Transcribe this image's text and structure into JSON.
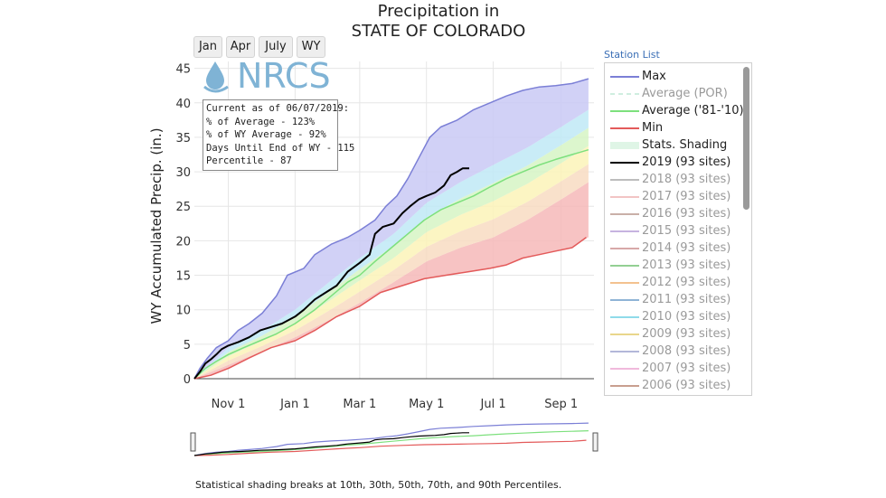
{
  "chart_data": {
    "type": "line",
    "title": "Precipitation in",
    "subtitle": "STATE OF COLORADO",
    "ylabel": "WY Accumulated Precip. (in.)",
    "xlabel": "",
    "ylim": [
      0,
      46
    ],
    "yticks": [
      0,
      5,
      10,
      15,
      20,
      25,
      30,
      35,
      40,
      45
    ],
    "x_unit": "days since Oct 1 of water year",
    "xlim": [
      0,
      365
    ],
    "x_ticks": [
      {
        "day": 31,
        "label": "Nov 1"
      },
      {
        "day": 92,
        "label": "Jan 1"
      },
      {
        "day": 151,
        "label": "Mar 1"
      },
      {
        "day": 212,
        "label": "May 1"
      },
      {
        "day": 273,
        "label": "Jul 1"
      },
      {
        "day": 335,
        "label": "Sep 1"
      }
    ],
    "grid": true,
    "legend_placement": "right",
    "series": [
      {
        "name": "Max",
        "color": "#7b7fd6",
        "points": [
          [
            0,
            0
          ],
          [
            5,
            1.5
          ],
          [
            12,
            3
          ],
          [
            20,
            4.5
          ],
          [
            31,
            5.5
          ],
          [
            40,
            7
          ],
          [
            50,
            8
          ],
          [
            62,
            9.5
          ],
          [
            75,
            12
          ],
          [
            85,
            15
          ],
          [
            100,
            16
          ],
          [
            110,
            18
          ],
          [
            125,
            19.5
          ],
          [
            140,
            20.5
          ],
          [
            151,
            21.5
          ],
          [
            165,
            23
          ],
          [
            175,
            25
          ],
          [
            185,
            26.5
          ],
          [
            195,
            29
          ],
          [
            205,
            32
          ],
          [
            215,
            35
          ],
          [
            225,
            36.5
          ],
          [
            240,
            37.5
          ],
          [
            255,
            39
          ],
          [
            270,
            40
          ],
          [
            285,
            41
          ],
          [
            300,
            41.8
          ],
          [
            315,
            42.3
          ],
          [
            330,
            42.5
          ],
          [
            345,
            42.8
          ],
          [
            360,
            43.5
          ]
        ]
      },
      {
        "name": "Average ('81-'10)",
        "color": "#7de07d",
        "points": [
          [
            0,
            0
          ],
          [
            10,
            1.5
          ],
          [
            20,
            2.5
          ],
          [
            31,
            3.5
          ],
          [
            45,
            4.5
          ],
          [
            60,
            5.5
          ],
          [
            75,
            6.5
          ],
          [
            92,
            8
          ],
          [
            110,
            10
          ],
          [
            125,
            12
          ],
          [
            140,
            14
          ],
          [
            151,
            15
          ],
          [
            165,
            17
          ],
          [
            180,
            19
          ],
          [
            195,
            21
          ],
          [
            210,
            23
          ],
          [
            225,
            24.5
          ],
          [
            240,
            25.5
          ],
          [
            255,
            26.5
          ],
          [
            270,
            27.8
          ],
          [
            285,
            29
          ],
          [
            300,
            30
          ],
          [
            315,
            31
          ],
          [
            330,
            31.8
          ],
          [
            345,
            32.5
          ],
          [
            360,
            33.2
          ]
        ]
      },
      {
        "name": "Min",
        "color": "#e35a5a",
        "points": [
          [
            0,
            0
          ],
          [
            15,
            0.5
          ],
          [
            31,
            1.5
          ],
          [
            50,
            3
          ],
          [
            70,
            4.5
          ],
          [
            92,
            5.5
          ],
          [
            110,
            7
          ],
          [
            130,
            9
          ],
          [
            151,
            10.5
          ],
          [
            170,
            12.5
          ],
          [
            190,
            13.5
          ],
          [
            210,
            14.5
          ],
          [
            230,
            15
          ],
          [
            250,
            15.5
          ],
          [
            270,
            16
          ],
          [
            285,
            16.5
          ],
          [
            300,
            17.5
          ],
          [
            315,
            18
          ],
          [
            330,
            18.5
          ],
          [
            345,
            19
          ],
          [
            358,
            20.5
          ]
        ]
      },
      {
        "name": "2019 (93 sites)",
        "color": "#000000",
        "points": [
          [
            0,
            0
          ],
          [
            5,
            1
          ],
          [
            10,
            2.2
          ],
          [
            15,
            2.8
          ],
          [
            20,
            3.5
          ],
          [
            25,
            4.3
          ],
          [
            31,
            4.8
          ],
          [
            40,
            5.3
          ],
          [
            50,
            6
          ],
          [
            60,
            7
          ],
          [
            70,
            7.5
          ],
          [
            80,
            8
          ],
          [
            92,
            9
          ],
          [
            100,
            10
          ],
          [
            110,
            11.5
          ],
          [
            120,
            12.5
          ],
          [
            130,
            13.5
          ],
          [
            140,
            15.5
          ],
          [
            151,
            16.8
          ],
          [
            160,
            18
          ],
          [
            165,
            21
          ],
          [
            172,
            22
          ],
          [
            182,
            22.5
          ],
          [
            190,
            24
          ],
          [
            197,
            25
          ],
          [
            205,
            26
          ],
          [
            212,
            26.5
          ],
          [
            220,
            27
          ],
          [
            228,
            28
          ],
          [
            234,
            29.5
          ],
          [
            240,
            30
          ],
          [
            245,
            30.5
          ],
          [
            251,
            30.5
          ]
        ]
      }
    ],
    "shading": {
      "name": "Stats. Shading",
      "percentiles": [
        "10th",
        "30th",
        "50th",
        "70th",
        "90th"
      ],
      "p10": [
        [
          0,
          0
        ],
        [
          31,
          2
        ],
        [
          62,
          4
        ],
        [
          92,
          6
        ],
        [
          123,
          8.5
        ],
        [
          151,
          11
        ],
        [
          182,
          14
        ],
        [
          212,
          17
        ],
        [
          243,
          19
        ],
        [
          273,
          20.5
        ],
        [
          304,
          23
        ],
        [
          335,
          26
        ],
        [
          360,
          28.5
        ]
      ],
      "p90": [
        [
          0,
          0
        ],
        [
          31,
          4.5
        ],
        [
          62,
          7
        ],
        [
          92,
          10
        ],
        [
          123,
          14
        ],
        [
          151,
          17.5
        ],
        [
          182,
          21
        ],
        [
          212,
          25.5
        ],
        [
          243,
          28.5
        ],
        [
          273,
          31
        ],
        [
          304,
          33.5
        ],
        [
          335,
          36.5
        ],
        [
          360,
          39
        ]
      ],
      "band_colors": [
        "#f6b9b9",
        "#f8dcc2",
        "#fbf3b8",
        "#d6f5c4",
        "#bfe9f6",
        "#c9c9f5"
      ]
    }
  },
  "range_buttons": [
    "Jan",
    "Apr",
    "July",
    "WY"
  ],
  "logo": {
    "text": "NRCS"
  },
  "info_box": {
    "line1": "Current as of 06/07/2019:",
    "line2": "% of Average - 123%",
    "line3": "% of WY Average - 92%",
    "line4": "Days Until End of WY - 115",
    "line5": "Percentile - 87"
  },
  "station_list_link": "Station List",
  "legend": {
    "items": [
      {
        "label": "Max",
        "color": "#7b7fd6",
        "kind": "line",
        "muted": false
      },
      {
        "label": "Average (POR)",
        "color": "#cfeee0",
        "kind": "dash",
        "muted": true
      },
      {
        "label": "Average ('81-'10)",
        "color": "#7de07d",
        "kind": "line",
        "muted": false
      },
      {
        "label": "Min",
        "color": "#e35a5a",
        "kind": "line",
        "muted": false
      },
      {
        "label": "Stats. Shading",
        "color": "#dff5e6",
        "kind": "box",
        "muted": false
      },
      {
        "label": "2019 (93 sites)",
        "color": "#000000",
        "kind": "line",
        "muted": false
      },
      {
        "label": "2018 (93 sites)",
        "color": "#bdbdbd",
        "kind": "line",
        "muted": true
      },
      {
        "label": "2017 (93 sites)",
        "color": "#f2c4c4",
        "kind": "line",
        "muted": true
      },
      {
        "label": "2016 (93 sites)",
        "color": "#c9b0a8",
        "kind": "line",
        "muted": true
      },
      {
        "label": "2015 (93 sites)",
        "color": "#c6b3e0",
        "kind": "line",
        "muted": true
      },
      {
        "label": "2014 (93 sites)",
        "color": "#d7a8a8",
        "kind": "line",
        "muted": true
      },
      {
        "label": "2013 (93 sites)",
        "color": "#93cf93",
        "kind": "line",
        "muted": true
      },
      {
        "label": "2012 (93 sites)",
        "color": "#f3c28f",
        "kind": "line",
        "muted": true
      },
      {
        "label": "2011 (93 sites)",
        "color": "#8fb4d6",
        "kind": "line",
        "muted": true
      },
      {
        "label": "2010 (93 sites)",
        "color": "#8fdbea",
        "kind": "line",
        "muted": true
      },
      {
        "label": "2009 (93 sites)",
        "color": "#e9d68c",
        "kind": "line",
        "muted": true
      },
      {
        "label": "2008 (93 sites)",
        "color": "#b3b7d9",
        "kind": "line",
        "muted": true
      },
      {
        "label": "2007 (93 sites)",
        "color": "#f0b9dc",
        "kind": "line",
        "muted": true
      },
      {
        "label": "2006 (93 sites)",
        "color": "#c89f8f",
        "kind": "line",
        "muted": true
      }
    ]
  },
  "footnote": "Statistical shading breaks at 10th, 30th, 50th, 70th, and 90th Percentiles."
}
